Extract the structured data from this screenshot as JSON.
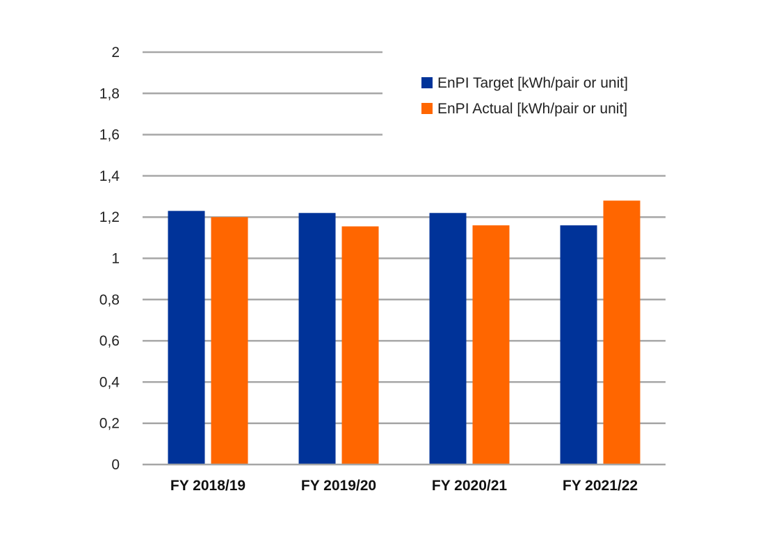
{
  "chart_data": {
    "type": "bar",
    "title": "",
    "xlabel": "",
    "ylabel": "",
    "categories": [
      "FY 2018/19",
      "FY 2019/20",
      "FY 2020/21",
      "FY 2021/22"
    ],
    "series": [
      {
        "name": "EnPI Target [kWh/pair or unit]",
        "color": "#003399",
        "values": [
          1.23,
          1.22,
          1.22,
          1.16
        ]
      },
      {
        "name": "EnPI Actual [kWh/pair or unit]",
        "color": "#ff6600",
        "values": [
          1.2,
          1.155,
          1.16,
          1.28
        ]
      }
    ],
    "y_ticks": [
      "0",
      "0,2",
      "0,4",
      "0,6",
      "0,8",
      "1",
      "1,2",
      "1,4",
      "1,6",
      "1,8",
      "2"
    ],
    "ylim": [
      0,
      2
    ],
    "grid": true,
    "legend_position": "top-right"
  }
}
